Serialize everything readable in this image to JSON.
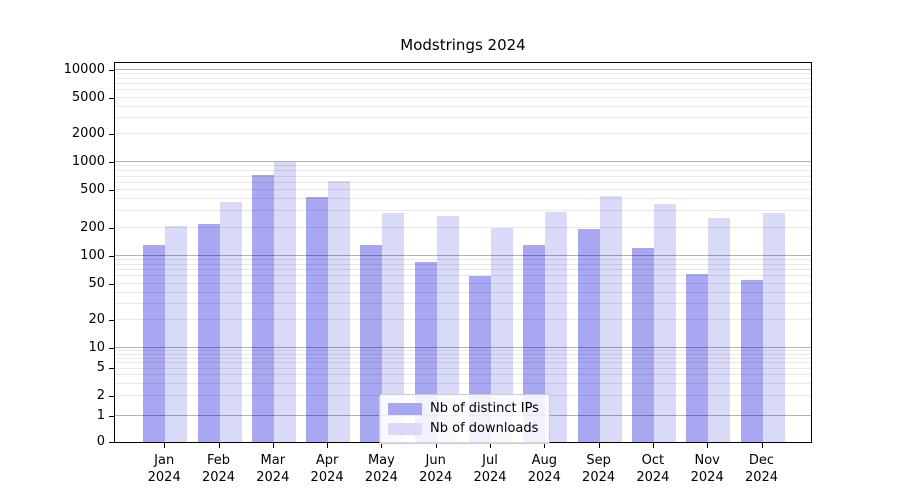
{
  "title": "Modstrings 2024",
  "chart_data": {
    "type": "bar",
    "title": "Modstrings 2024",
    "yscale": "symlog",
    "grid": true,
    "legend_position": "lower center",
    "categories": [
      "Jan 2024",
      "Feb 2024",
      "Mar 2024",
      "Apr 2024",
      "May 2024",
      "Jun 2024",
      "Jul 2024",
      "Aug 2024",
      "Sep 2024",
      "Oct 2024",
      "Nov 2024",
      "Dec 2024"
    ],
    "series": [
      {
        "name": "Nb of distinct IPs",
        "color": "#a7a7f2",
        "values": [
          130,
          220,
          730,
          420,
          130,
          86,
          60,
          130,
          195,
          122,
          64,
          55
        ]
      },
      {
        "name": "Nb of downloads",
        "color": "#d9d9f8",
        "values": [
          210,
          380,
          1010,
          630,
          290,
          265,
          200,
          295,
          435,
          360,
          255,
          290
        ]
      }
    ],
    "yticks": [
      0,
      1,
      2,
      5,
      10,
      20,
      50,
      100,
      200,
      500,
      1000,
      2000,
      5000,
      10000
    ],
    "ylim": [
      0,
      12500
    ]
  },
  "legend": {
    "items": [
      {
        "label": "Nb of distinct IPs",
        "color": "#a7a7f2"
      },
      {
        "label": "Nb of downloads",
        "color": "#d9d9f8"
      }
    ]
  }
}
